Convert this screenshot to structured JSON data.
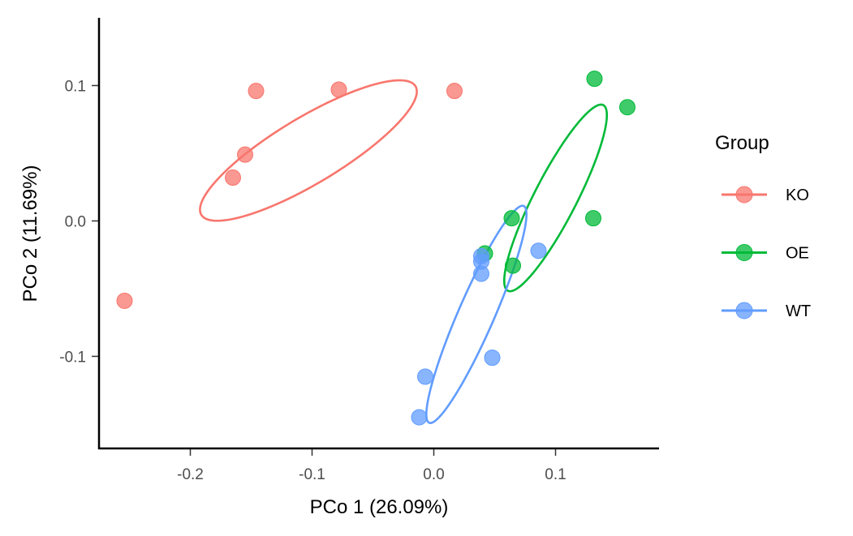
{
  "chart_data": {
    "type": "scatter",
    "xlabel": "PCo 1 (26.09%)",
    "ylabel": "PCo 2 (11.69%)",
    "xlim": [
      -0.275,
      0.185
    ],
    "ylim": [
      -0.168,
      0.15
    ],
    "x_ticks": [
      {
        "value": -0.2,
        "label": "-0.2"
      },
      {
        "value": -0.1,
        "label": "-0.1"
      },
      {
        "value": 0.0,
        "label": "0.0"
      },
      {
        "value": 0.1,
        "label": "0.1"
      }
    ],
    "y_ticks": [
      {
        "value": -0.1,
        "label": "-0.1"
      },
      {
        "value": 0.0,
        "label": "0.0"
      },
      {
        "value": 0.1,
        "label": "0.1"
      }
    ],
    "grid": false,
    "legend": {
      "title": "Group",
      "position": "right",
      "entries": [
        "KO",
        "OE",
        "WT"
      ]
    },
    "series": [
      {
        "name": "KO",
        "color": "#F8766D",
        "points": [
          {
            "x": -0.146,
            "y": 0.096
          },
          {
            "x": -0.078,
            "y": 0.097
          },
          {
            "x": 0.017,
            "y": 0.096
          },
          {
            "x": -0.155,
            "y": 0.049
          },
          {
            "x": -0.165,
            "y": 0.032
          },
          {
            "x": -0.254,
            "y": -0.059
          }
        ],
        "ellipse": {
          "cx": -0.103,
          "cy": 0.052,
          "rx": 0.2,
          "ry": 0.05,
          "angle_deg": 28
        }
      },
      {
        "name": "OE",
        "color": "#00BA38",
        "points": [
          {
            "x": 0.132,
            "y": 0.105
          },
          {
            "x": 0.159,
            "y": 0.084
          },
          {
            "x": 0.064,
            "y": 0.002
          },
          {
            "x": 0.131,
            "y": 0.002
          },
          {
            "x": 0.042,
            "y": -0.024
          },
          {
            "x": 0.065,
            "y": -0.033
          }
        ],
        "ellipse": {
          "cx": 0.1,
          "cy": 0.017,
          "rx": 0.158,
          "ry": 0.034,
          "angle_deg": 60
        }
      },
      {
        "name": "WT",
        "color": "#619CFF",
        "points": [
          {
            "x": 0.039,
            "y": -0.026
          },
          {
            "x": 0.039,
            "y": -0.03
          },
          {
            "x": 0.086,
            "y": -0.022
          },
          {
            "x": 0.039,
            "y": -0.039
          },
          {
            "x": 0.048,
            "y": -0.101
          },
          {
            "x": -0.007,
            "y": -0.115
          },
          {
            "x": -0.012,
            "y": -0.145
          }
        ],
        "ellipse": {
          "cx": 0.035,
          "cy": -0.069,
          "rx": 0.178,
          "ry": 0.029,
          "angle_deg": 64
        }
      }
    ]
  }
}
